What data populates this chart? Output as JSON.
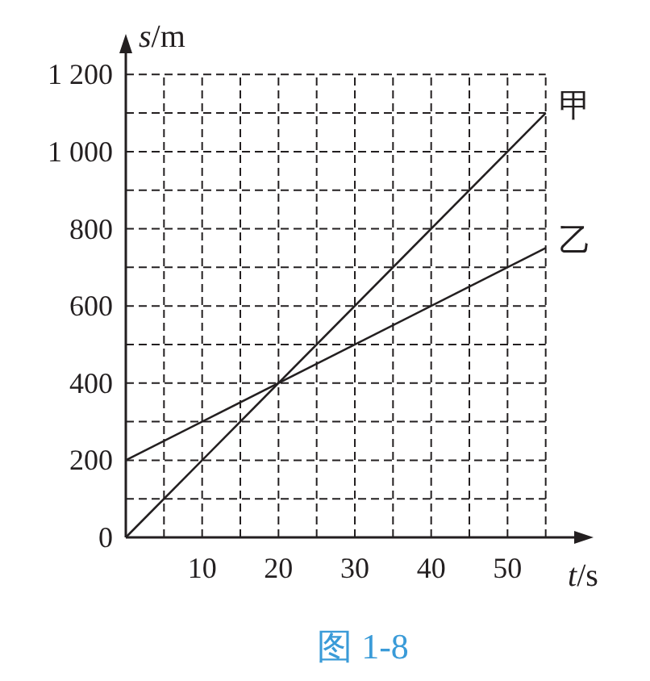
{
  "chart_data": {
    "type": "line",
    "xlabel": "t/s",
    "ylabel": "s/m",
    "annotations": [
      "图 1-8"
    ],
    "x": [
      0,
      55
    ],
    "series": [
      {
        "name": "甲",
        "color": "#231f20",
        "values": [
          0,
          1100
        ]
      },
      {
        "name": "乙",
        "color": "#231f20",
        "values": [
          200,
          750
        ]
      }
    ],
    "xlim": [
      0,
      60
    ],
    "ylim": [
      0,
      1280
    ],
    "xticks": [
      {
        "value": 5,
        "label": null
      },
      10,
      {
        "value": 15,
        "label": null
      },
      20,
      {
        "value": 25,
        "label": null
      },
      30,
      {
        "value": 35,
        "label": null
      },
      40,
      {
        "value": 45,
        "label": null
      },
      50,
      {
        "value": 55,
        "label": null
      }
    ],
    "yticks": [
      {
        "value": 0,
        "label": "0"
      },
      {
        "value": 100,
        "label": null
      },
      {
        "value": 200,
        "label": "200"
      },
      {
        "value": 300,
        "label": null
      },
      {
        "value": 400,
        "label": "400"
      },
      {
        "value": 500,
        "label": null
      },
      {
        "value": 600,
        "label": "600"
      },
      {
        "value": 700,
        "label": null
      },
      {
        "value": 800,
        "label": "800"
      },
      {
        "value": 900,
        "label": null
      },
      {
        "value": 1000,
        "label": "1 000"
      },
      {
        "value": 1100,
        "label": null
      },
      {
        "value": 1200,
        "label": "1 200"
      }
    ],
    "grid": true,
    "line_style": "solid",
    "marker": "none"
  }
}
